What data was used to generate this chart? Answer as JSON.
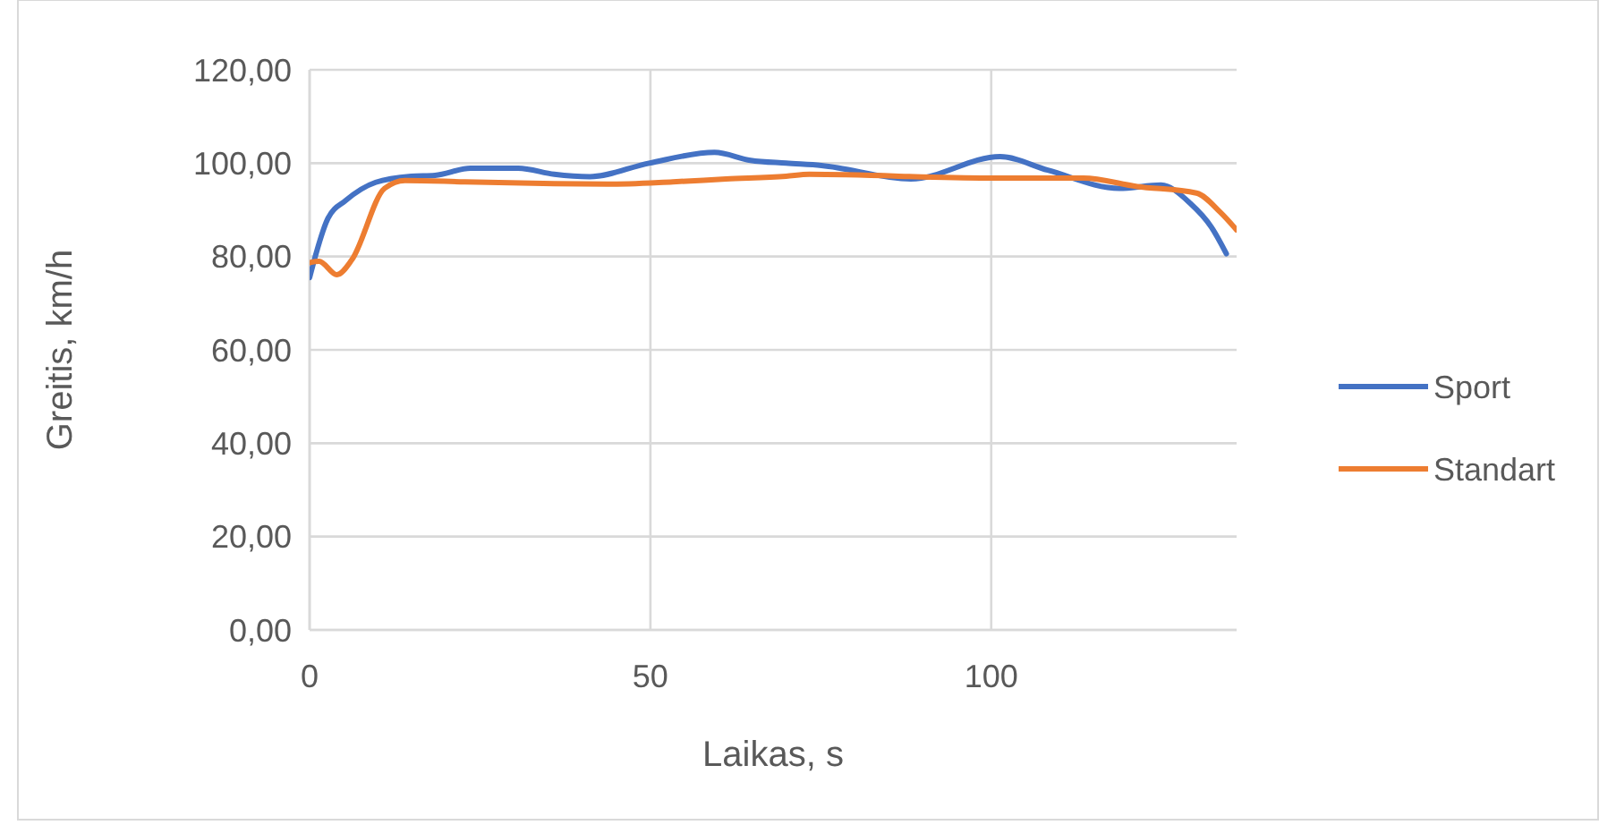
{
  "chart_data": {
    "type": "line",
    "xlabel": "Laikas, s",
    "ylabel": "Greitis, km/h",
    "xlim": [
      0,
      136
    ],
    "xticks": [
      0,
      50,
      100
    ],
    "ylim": [
      0,
      120
    ],
    "yticks": [
      {
        "value": 0,
        "label": "0,00"
      },
      {
        "value": 20,
        "label": "20,00"
      },
      {
        "value": 40,
        "label": "40,00"
      },
      {
        "value": 60,
        "label": "60,00"
      },
      {
        "value": 80,
        "label": "80,00"
      },
      {
        "value": 100,
        "label": "100,00"
      },
      {
        "value": 120,
        "label": "120,00"
      }
    ],
    "grid": true,
    "legend": "right",
    "series": [
      {
        "name": "Sport",
        "color": "#4472c4",
        "x": [
          0,
          2.7,
          5.3,
          9.7,
          14.9,
          18.4,
          23.6,
          30.6,
          35.9,
          41.1,
          49.8,
          59.4,
          64.7,
          69.9,
          75.1,
          88.2,
          101.3,
          108.3,
          118.8,
          124.9,
          129.2,
          132.3,
          134.5
        ],
        "values": [
          75.5,
          88.2,
          92,
          95.9,
          97.2,
          97.4,
          98.9,
          98.9,
          97.6,
          97.1,
          100,
          102.3,
          100.6,
          100,
          99.5,
          96.6,
          101.4,
          98.5,
          94.6,
          95.3,
          91.4,
          86.3,
          80.6
        ]
      },
      {
        "name": "Standart",
        "color": "#ed7d31",
        "x": [
          0,
          1.4,
          4,
          6.2,
          11,
          14,
          22.8,
          35.9,
          43.7,
          53.3,
          61.1,
          69.9,
          73.3,
          99.5,
          113.5,
          121.4,
          130.1,
          133.6,
          136
        ],
        "values": [
          78.7,
          79,
          76.1,
          79.3,
          94.6,
          96.3,
          96,
          95.6,
          95.5,
          96,
          96.6,
          97.2,
          97.6,
          96.8,
          96.8,
          95,
          93.6,
          89.5,
          85.7
        ]
      }
    ]
  }
}
